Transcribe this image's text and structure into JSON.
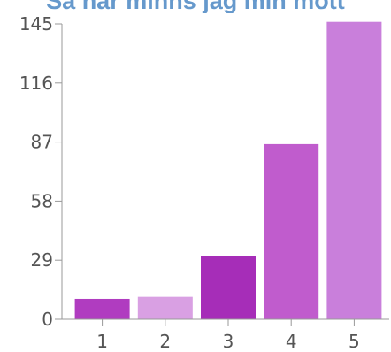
{
  "chart_data": {
    "type": "bar",
    "title": "Så här minns jag min mott",
    "xlabel": "",
    "ylabel": "",
    "categories": [
      "1",
      "2",
      "3",
      "4",
      "5"
    ],
    "values": [
      10,
      11,
      31,
      86,
      146
    ],
    "ylim": [
      0,
      145
    ],
    "yticks": [
      0,
      29,
      58,
      87,
      116,
      145
    ],
    "grid": false,
    "legend": "none"
  },
  "colors": {
    "title": "#6699cc",
    "axis": "#999999",
    "tick_text": "#555555",
    "bars": [
      "#b03cc0",
      "#d9a0e3",
      "#a62db8",
      "#c05ccd",
      "#c97fdb"
    ]
  }
}
